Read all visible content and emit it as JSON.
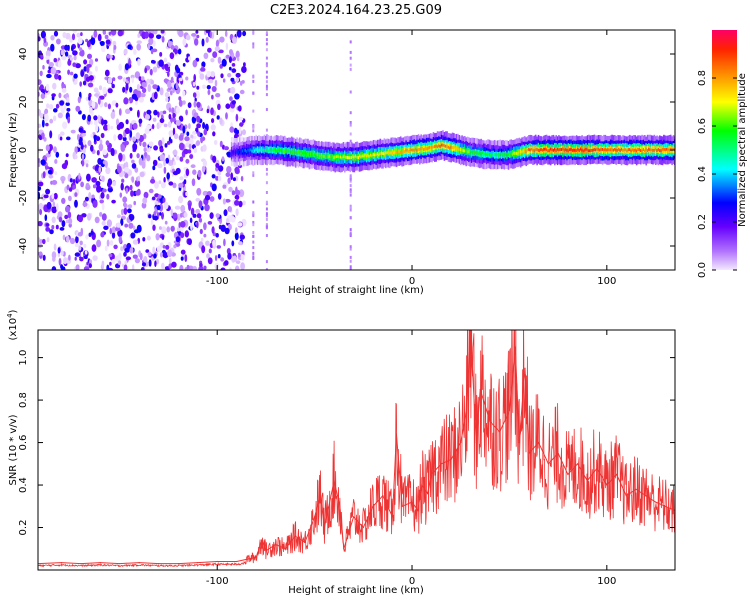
{
  "figure": {
    "title": "C2E3.2024.164.23.25.G09"
  },
  "colors": {
    "snr_line": "#ee3333",
    "axis": "#000000",
    "spectrogram_colormap": [
      "#f3e8ff",
      "#7700ff",
      "#0000ff",
      "#00ffff",
      "#00ff00",
      "#ffff00",
      "#ff8800",
      "#ff0066"
    ]
  },
  "chart_data": [
    {
      "type": "heatmap",
      "title": "C2E3.2024.164.23.25.G09",
      "xlabel": "Height of straight line (km)",
      "ylabel": "Frequency (Hz)",
      "xlim": [
        -192,
        135
      ],
      "ylim": [
        -50,
        50
      ],
      "x_ticks": [
        -100,
        0,
        100
      ],
      "x_tick_labels": [
        "-100",
        "0",
        "100"
      ],
      "y_ticks": [
        -40,
        -20,
        0,
        20,
        40
      ],
      "y_tick_labels": [
        "-40",
        "-20",
        "0",
        "20",
        "40"
      ],
      "grid": false,
      "colorbar": {
        "label": "Normalized spectral amplitude",
        "range": [
          0,
          1
        ],
        "ticks": [
          0.0,
          0.2,
          0.4,
          0.6,
          0.8
        ],
        "tick_labels": [
          "0.0",
          "0.2",
          "0.4",
          "0.6",
          "0.8"
        ]
      },
      "noise_region_x": [
        -192,
        -86
      ],
      "signal_ridge": {
        "x": [
          -93,
          -80,
          -70,
          -60,
          -50,
          -40,
          -30,
          -20,
          -10,
          0,
          10,
          15,
          20,
          25,
          30,
          40,
          50,
          60,
          70,
          80,
          90,
          100,
          110,
          120,
          135
        ],
        "frequency": [
          -1,
          0,
          0,
          -1,
          -2,
          -3,
          -3,
          -2,
          -1,
          0,
          1,
          2,
          1,
          0,
          -1,
          -2,
          -2,
          0,
          0,
          0,
          0,
          0,
          0,
          0,
          0
        ],
        "peak_amplitude": [
          0.2,
          0.45,
          0.55,
          0.6,
          0.6,
          0.65,
          0.7,
          0.7,
          0.75,
          0.8,
          0.8,
          0.85,
          0.8,
          0.7,
          0.6,
          0.5,
          0.6,
          0.85,
          0.9,
          0.9,
          0.9,
          0.85,
          0.85,
          0.85,
          0.85
        ]
      }
    },
    {
      "type": "line",
      "xlabel": "Height of straight line (km)",
      "ylabel": "SNR (10 * v/v)",
      "y_multiplier": "(x10",
      "y_multiplier_exp": "4",
      "y_multiplier_close": ")",
      "xlim": [
        -192,
        135
      ],
      "ylim": [
        0,
        1.13
      ],
      "x_ticks": [
        -100,
        0,
        100
      ],
      "x_tick_labels": [
        "-100",
        "0",
        "100"
      ],
      "y_ticks": [
        0.2,
        0.4,
        0.6,
        0.8,
        1.0
      ],
      "y_tick_labels": [
        "0.2",
        "0.4",
        "0.6",
        "0.8",
        "1.0"
      ],
      "grid": false,
      "series": [
        {
          "x": [
            -192,
            -180,
            -170,
            -160,
            -150,
            -140,
            -130,
            -120,
            -110,
            -100,
            -90,
            -85,
            -80,
            -77,
            -75,
            -70,
            -65,
            -60,
            -55,
            -50,
            -47,
            -45,
            -40,
            -37,
            -35,
            -30,
            -25,
            -20,
            -15,
            -10,
            -8,
            -5,
            0,
            3,
            5,
            8,
            10,
            15,
            20,
            25,
            28,
            30,
            33,
            35,
            40,
            45,
            50,
            53,
            55,
            58,
            60,
            65,
            70,
            75,
            80,
            85,
            90,
            95,
            100,
            105,
            110,
            115,
            120,
            125,
            130,
            135
          ],
          "y": [
            0.03,
            0.035,
            0.03,
            0.035,
            0.03,
            0.035,
            0.03,
            0.03,
            0.035,
            0.04,
            0.04,
            0.05,
            0.06,
            0.14,
            0.09,
            0.12,
            0.1,
            0.16,
            0.13,
            0.25,
            0.35,
            0.2,
            0.42,
            0.3,
            0.1,
            0.25,
            0.2,
            0.3,
            0.35,
            0.25,
            0.64,
            0.3,
            0.32,
            0.28,
            0.4,
            0.36,
            0.45,
            0.5,
            0.52,
            0.6,
            0.75,
            1.13,
            0.6,
            0.85,
            0.7,
            0.65,
            0.75,
            1.05,
            0.6,
            0.95,
            0.55,
            0.6,
            0.5,
            0.55,
            0.45,
            0.5,
            0.42,
            0.48,
            0.4,
            0.45,
            0.35,
            0.38,
            0.35,
            0.32,
            0.3,
            0.28
          ]
        }
      ]
    }
  ]
}
